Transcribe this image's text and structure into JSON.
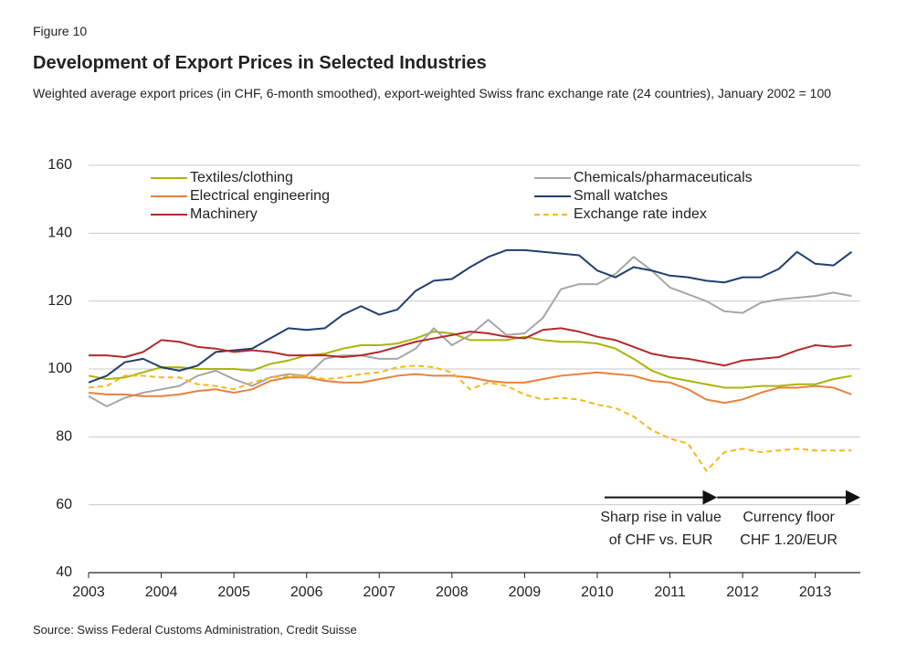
{
  "chart_data": {
    "type": "line",
    "label": "Figure 10",
    "title": "Development of Export Prices in Selected Industries",
    "subtitle": "Weighted average export prices (in CHF, 6-month smoothed), export-weighted Swiss franc exchange rate (24 countries), January 2002 = 100",
    "source": "Source: Swiss Federal Customs Administration, Credit Suisse",
    "x": [
      2003,
      2003.25,
      2003.5,
      2003.75,
      2004,
      2004.25,
      2004.5,
      2004.75,
      2005,
      2005.25,
      2005.5,
      2005.75,
      2006,
      2006.25,
      2006.5,
      2006.75,
      2007,
      2007.25,
      2007.5,
      2007.75,
      2008,
      2008.25,
      2008.5,
      2008.75,
      2009,
      2009.25,
      2009.5,
      2009.75,
      2010,
      2010.25,
      2010.5,
      2010.75,
      2011,
      2011.25,
      2011.5,
      2011.75,
      2012,
      2012.25,
      2012.5,
      2012.75,
      2013,
      2013.25,
      2013.5
    ],
    "xlim": [
      2003,
      2013.62
    ],
    "xticks": [
      2003,
      2004,
      2005,
      2006,
      2007,
      2008,
      2009,
      2010,
      2011,
      2012,
      2013
    ],
    "ylim": [
      40,
      160
    ],
    "yticks": [
      40,
      60,
      80,
      100,
      120,
      140,
      160
    ],
    "grid": true,
    "series": [
      {
        "name": "Textiles/clothing",
        "color": "#a9b50a",
        "values": [
          98,
          97,
          97.5,
          99,
          100.5,
          100.5,
          100,
          100,
          100,
          99.5,
          101.5,
          102.5,
          104,
          104.5,
          106,
          107,
          107,
          107.5,
          109,
          111,
          110.5,
          108.5,
          108.5,
          108.5,
          109.5,
          108.5,
          108,
          108,
          107.5,
          106,
          103,
          99.5,
          97.5,
          96.5,
          95.5,
          94.5,
          94.5,
          95,
          95,
          95.5,
          95.5,
          97,
          98
        ]
      },
      {
        "name": "Chemicals/pharmaceuticals",
        "color": "#a6a6a6",
        "values": [
          92,
          89,
          91.5,
          93,
          94,
          95,
          98,
          99.5,
          97,
          95,
          97.5,
          98.5,
          98,
          103,
          104,
          104,
          103,
          103,
          106,
          112,
          107,
          110,
          114.5,
          110,
          110.5,
          115,
          123.5,
          125,
          125,
          128,
          133,
          129,
          124,
          122,
          120,
          117,
          116.5,
          119.5,
          120.5,
          121,
          121.5,
          122.5,
          121.5
        ]
      },
      {
        "name": "Electrical engineering",
        "color": "#e8823a",
        "values": [
          93,
          92.5,
          92.5,
          92,
          92,
          92.5,
          93.5,
          94,
          93,
          94,
          96.5,
          97.5,
          97.5,
          96.5,
          96,
          96,
          97,
          98,
          98.5,
          98,
          98,
          97.5,
          96.5,
          96,
          96,
          97,
          98,
          98.5,
          99,
          98.5,
          98,
          96.5,
          96,
          94,
          91,
          90,
          91,
          93,
          94.5,
          94.5,
          95,
          94.5,
          92.5
        ]
      },
      {
        "name": "Small watches",
        "color": "#1f3f6e",
        "values": [
          96,
          98,
          102,
          103,
          100.5,
          99.5,
          101,
          105,
          105.5,
          106,
          109,
          112,
          111.5,
          112,
          116,
          118.5,
          116,
          117.5,
          123,
          126,
          126.5,
          130,
          133,
          135,
          135,
          134.5,
          134,
          133.5,
          129,
          127,
          130,
          129,
          127.5,
          127,
          126,
          125.5,
          127,
          127,
          129.5,
          134.5,
          131,
          130.5,
          134.5
        ]
      },
      {
        "name": "Machinery",
        "color": "#b22a2a",
        "values": [
          104,
          104,
          103.5,
          105,
          108.5,
          108,
          106.5,
          106,
          105,
          105.5,
          105,
          104,
          104,
          104,
          103.5,
          104,
          105,
          106.5,
          108,
          109,
          110,
          111,
          110.5,
          109.5,
          109,
          111.5,
          112,
          111,
          109.5,
          108.5,
          106.5,
          104.5,
          103.5,
          103,
          102,
          101,
          102.5,
          103,
          103.5,
          105.5,
          107,
          106.5,
          107
        ]
      },
      {
        "name": "Exchange rate index",
        "color": "#f5b81c",
        "dashed": true,
        "values": [
          94.5,
          95,
          98,
          98,
          97.5,
          97.5,
          95.5,
          95,
          94,
          96,
          97.5,
          98,
          98,
          97,
          97.5,
          98.5,
          99,
          100.5,
          101,
          100.5,
          99,
          94,
          96,
          95,
          92.5,
          91,
          91.5,
          91,
          89.5,
          88.5,
          86,
          82,
          79.5,
          78,
          70,
          75.5,
          76.5,
          75.5,
          76,
          76.5,
          76,
          76,
          76
        ]
      }
    ],
    "annotations": [
      {
        "lines": [
          "Sharp rise in value",
          "of CHF vs. EUR"
        ],
        "x_start": 2010.1,
        "x_end": 2011.65,
        "y": 60
      },
      {
        "lines": [
          "Currency floor",
          "CHF 1.20/EUR"
        ],
        "x_start": 2011.65,
        "x_end": 2013.62,
        "y": 60
      }
    ]
  }
}
